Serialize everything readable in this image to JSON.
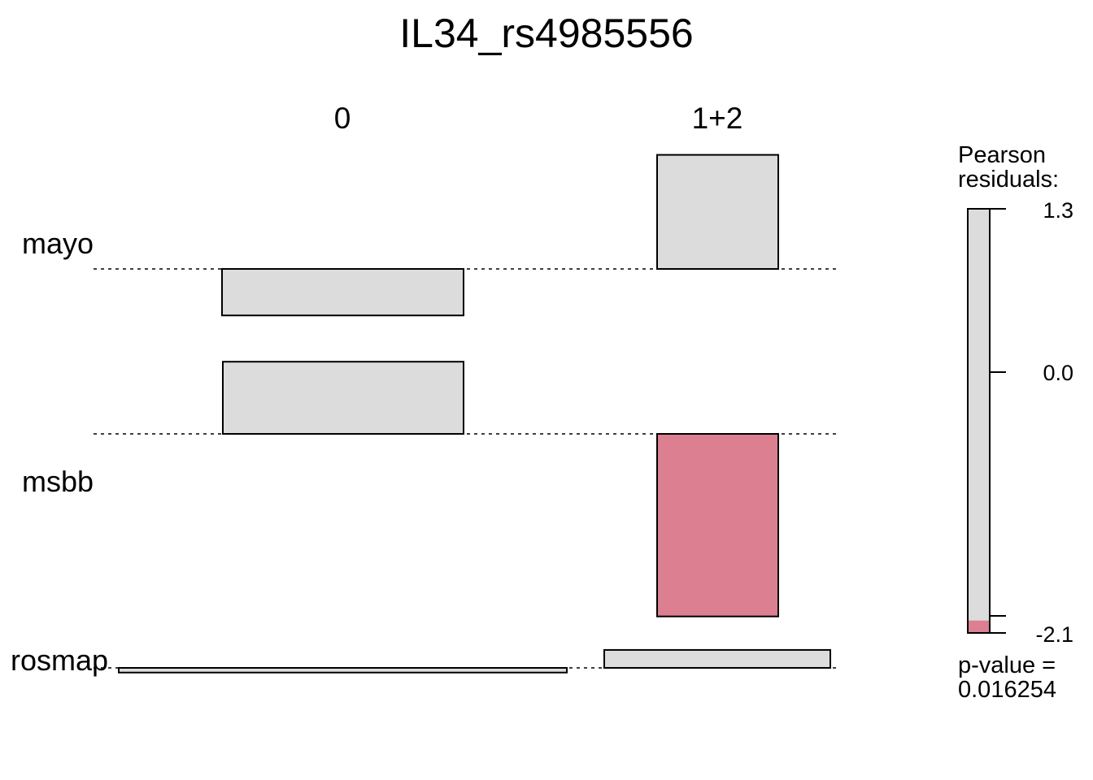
{
  "chart_data": {
    "type": "association-plot",
    "title": "IL34_rs4985556",
    "columns": [
      "0",
      "1+2"
    ],
    "rows": [
      "mayo",
      "msbb",
      "rosmap"
    ],
    "cells": [
      {
        "row": "mayo",
        "column": "0",
        "residual": -0.53
      },
      {
        "row": "mayo",
        "column": "1+2",
        "residual": 1.3
      },
      {
        "row": "msbb",
        "column": "0",
        "residual": 0.83
      },
      {
        "row": "msbb",
        "column": "1+2",
        "residual": -2.1
      },
      {
        "row": "rosmap",
        "column": "0",
        "residual": -0.12
      },
      {
        "row": "rosmap",
        "column": "1+2",
        "residual": 0.46
      }
    ],
    "legend": {
      "title_line1": "Pearson",
      "title_line2": "residuals:",
      "ticks": [
        "1.3",
        "0.0",
        "-2.1"
      ],
      "max": 1.3,
      "min": -2.1,
      "shade_threshold": -2.0,
      "pvalue_line1": "p-value =",
      "pvalue_line2": "0.016254"
    },
    "colors": {
      "neutral": "#dcdcdc",
      "negative_significant": "#db7f91",
      "outline": "#000000"
    }
  }
}
